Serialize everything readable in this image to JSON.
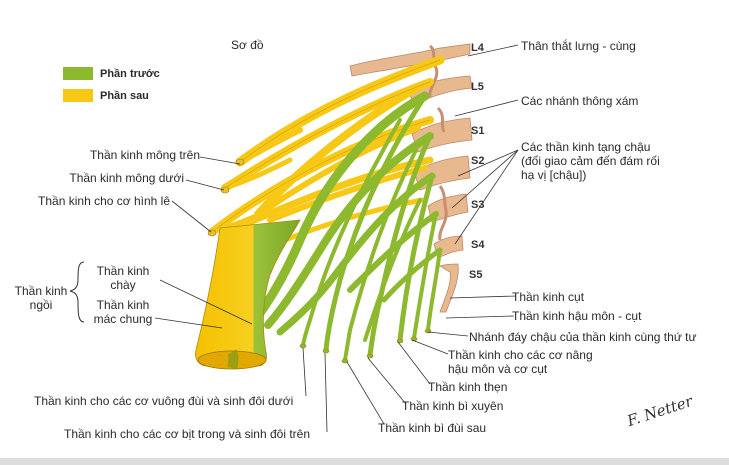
{
  "title": "Sơ đồ",
  "legend": [
    {
      "label": "Phần trước",
      "color": "#8db92e"
    },
    {
      "label": "Phần sau",
      "color": "#f7c815"
    }
  ],
  "roots": [
    "L4",
    "L5",
    "S1",
    "S2",
    "S3",
    "S4",
    "S5"
  ],
  "labels_right": [
    "Thân thắt lưng - cùng",
    "Các nhánh thông xám",
    "Các thần kinh tạng chậu",
    "(đối giao cảm đến đám rối",
    "hạ vị [chậu])",
    "Thần kinh cụt",
    "Thần kinh hậu môn - cụt",
    "Nhánh đáy chậu của thần kinh cùng thứ tư",
    "Thần kinh cho các cơ nâng",
    "hậu môn và cơ cụt",
    "Thần kinh thẹn",
    "Thần kinh bì xuyên",
    "Thần kinh bì đùi sau"
  ],
  "labels_left": [
    "Thần kinh mông trên",
    "Thần kinh mông dưới",
    "Thần kinh cho cơ hình lê"
  ],
  "sciatic": {
    "group": "Thần kinh ngồi",
    "tibial": "Thần kinh chày",
    "fibular": "Thần kinh mác chung"
  },
  "labels_bottom": [
    "Thần kinh cho các cơ vuông đùi và sinh đôi dưới",
    "Thần kinh cho các cơ bịt trong và sinh đôi trên"
  ],
  "colors": {
    "anterior": "#8db92e",
    "posterior": "#f7c815",
    "trunk": "#e8b98f",
    "leader": "#333333"
  },
  "signature": "F. Netter"
}
